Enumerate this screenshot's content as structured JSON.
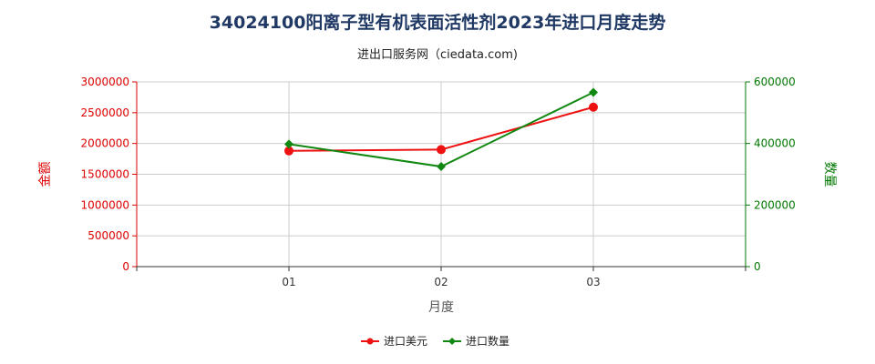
{
  "chart_data": {
    "type": "line",
    "title": "34024100阳离子型有机表面活性剂2023年进口月度走势",
    "subtitle": "进出口服务网（ciedata.com)",
    "xlabel": "月度",
    "ylabel_left": "金额",
    "ylabel_right": "数量",
    "categories": [
      "01",
      "02",
      "03"
    ],
    "y_left": {
      "min": 0,
      "max": 3000000,
      "ticks": [
        "0",
        "500000",
        "1000000",
        "1500000",
        "2000000",
        "2500000",
        "3000000"
      ],
      "color": "#dd0000"
    },
    "y_right": {
      "min": 0,
      "max": 600000,
      "ticks": [
        "0",
        "200000",
        "400000",
        "600000"
      ],
      "color": "#007700"
    },
    "grid": true,
    "legend_position": "bottom-center",
    "series": [
      {
        "name": "进口美元",
        "axis": "left",
        "color": "#ee1111",
        "marker": "circle",
        "values": [
          1880000,
          1900000,
          2590000
        ]
      },
      {
        "name": "进口数量",
        "axis": "right",
        "color": "#118811",
        "marker": "diamond",
        "values": [
          398000,
          325000,
          566000
        ]
      }
    ]
  }
}
